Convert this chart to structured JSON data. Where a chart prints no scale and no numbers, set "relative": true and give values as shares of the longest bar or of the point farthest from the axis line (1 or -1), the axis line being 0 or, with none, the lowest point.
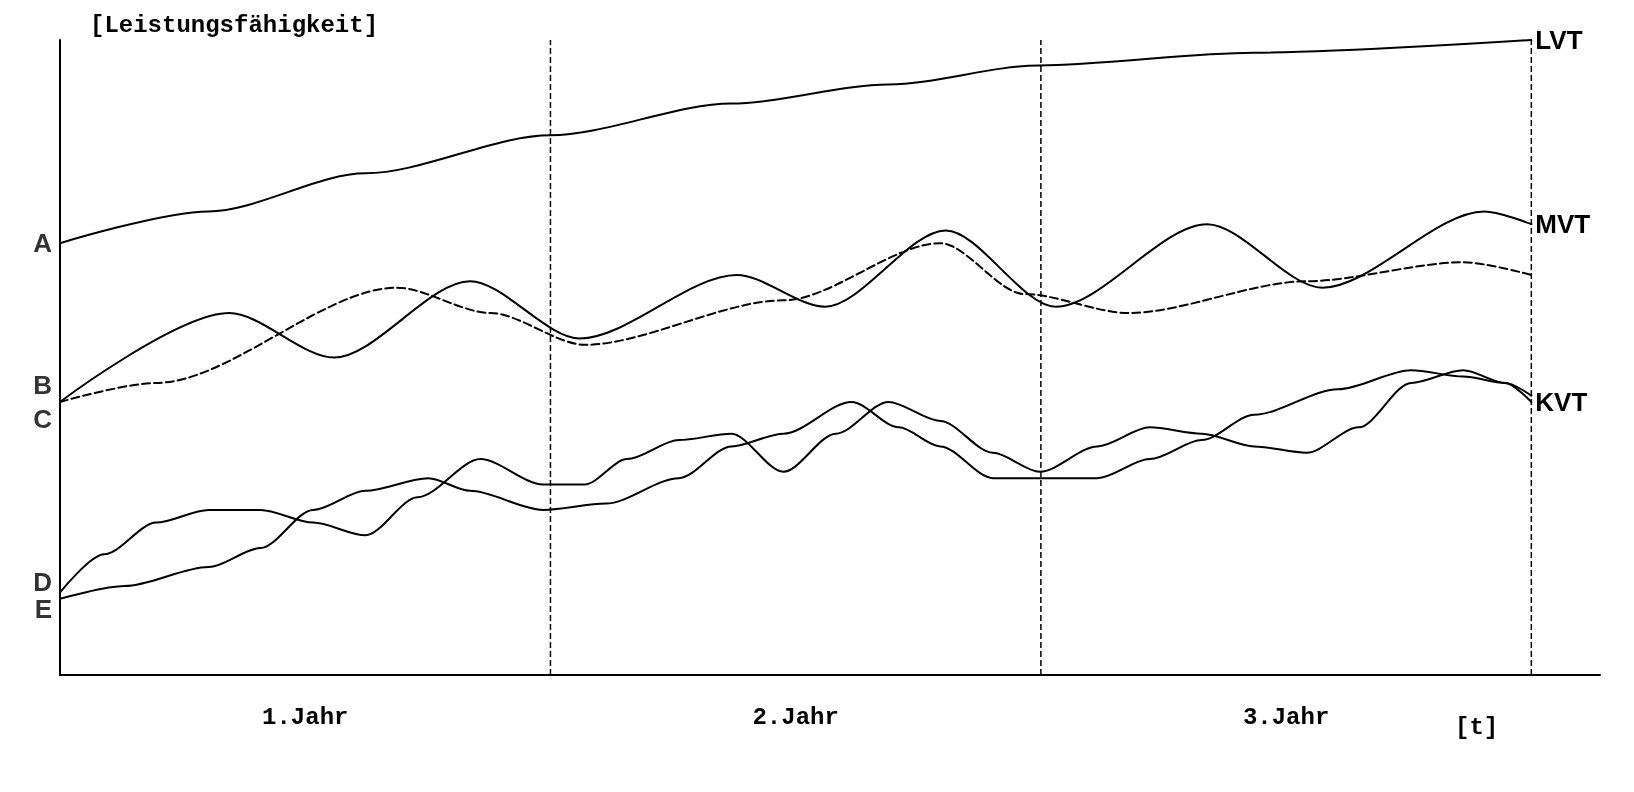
{
  "chart_data": {
    "type": "line",
    "relative": true,
    "ylabel": "[Leistungsfähigkeit]",
    "xlabel": "[t]",
    "marker": "none",
    "legend": false,
    "grid": false,
    "xlim": [
      0,
      3.14
    ],
    "xticks": [
      {
        "value": 0.5,
        "label": "1.Jahr"
      },
      {
        "value": 1.5,
        "label": "2.Jahr"
      },
      {
        "value": 2.5,
        "label": "3.Jahr"
      }
    ],
    "series": [
      {
        "name": "LVT",
        "color": "#000000",
        "line_style": "solid",
        "x": [
          0,
          0.303,
          0.623,
          1,
          1.369,
          1.689,
          1.996,
          2.433,
          3.0
        ],
        "values": [
          0.68,
          0.73,
          0.79,
          0.85,
          0.9,
          0.93,
          0.96,
          0.98,
          1
        ]
      },
      {
        "name": "MVT",
        "color": "#000000",
        "line_style": "solid",
        "x": [
          0,
          0.345,
          0.559,
          0.836,
          1.06,
          1.38,
          1.56,
          1.806,
          2.03,
          2.339,
          2.574,
          2.904,
          3.0
        ],
        "values": [
          0.43,
          0.57,
          0.5,
          0.62,
          0.53,
          0.63,
          0.58,
          0.7,
          0.58,
          0.71,
          0.61,
          0.73,
          0.71
        ]
      },
      {
        "color": "#000000",
        "line_style": "dashed",
        "x": [
          0,
          0.196,
          0.687,
          0.878,
          1.07,
          1.475,
          1.795,
          1.966,
          2.179,
          2.541,
          2.862,
          3.0
        ],
        "values": [
          0.43,
          0.46,
          0.61,
          0.57,
          0.52,
          0.59,
          0.68,
          0.6,
          0.57,
          0.62,
          0.65,
          0.63
        ]
      },
      {
        "name": "KVT",
        "color": "#000000",
        "line_style": "solid",
        "x": [
          0,
          0.132,
          0.303,
          0.409,
          0.516,
          0.623,
          0.751,
          0.836,
          0.985,
          1.113,
          1.262,
          1.369,
          1.475,
          1.614,
          1.71,
          1.795,
          1.902,
          2.009,
          2.115,
          2.222,
          2.328,
          2.435,
          2.606,
          2.755,
          2.861,
          2.947,
          3.0
        ],
        "values": [
          0.12,
          0.14,
          0.17,
          0.2,
          0.26,
          0.29,
          0.31,
          0.29,
          0.26,
          0.27,
          0.31,
          0.36,
          0.38,
          0.43,
          0.39,
          0.36,
          0.31,
          0.31,
          0.31,
          0.34,
          0.37,
          0.41,
          0.45,
          0.48,
          0.47,
          0.46,
          0.43
        ]
      },
      {
        "color": "#000000",
        "line_style": "solid",
        "x": [
          0,
          0.09,
          0.196,
          0.303,
          0.409,
          0.516,
          0.623,
          0.729,
          0.857,
          0.985,
          1.07,
          1.156,
          1.262,
          1.369,
          1.475,
          1.582,
          1.689,
          1.795,
          1.902,
          1.998,
          2.115,
          2.222,
          2.328,
          2.435,
          2.542,
          2.648,
          2.755,
          2.861,
          2.947,
          3.0
        ],
        "values": [
          0.13,
          0.19,
          0.24,
          0.26,
          0.26,
          0.24,
          0.22,
          0.28,
          0.34,
          0.3,
          0.3,
          0.34,
          0.37,
          0.38,
          0.32,
          0.38,
          0.43,
          0.4,
          0.35,
          0.32,
          0.36,
          0.39,
          0.38,
          0.36,
          0.35,
          0.39,
          0.46,
          0.48,
          0.46,
          0.44
        ]
      }
    ],
    "ref_lines": [
      {
        "axis": "x",
        "value": 1,
        "line_style": "dashed"
      },
      {
        "axis": "x",
        "value": 2,
        "line_style": "dashed"
      },
      {
        "axis": "x",
        "value": 3,
        "line_style": "dashed"
      }
    ],
    "annotations": [
      "A",
      "B",
      "C",
      "D",
      "E"
    ]
  }
}
